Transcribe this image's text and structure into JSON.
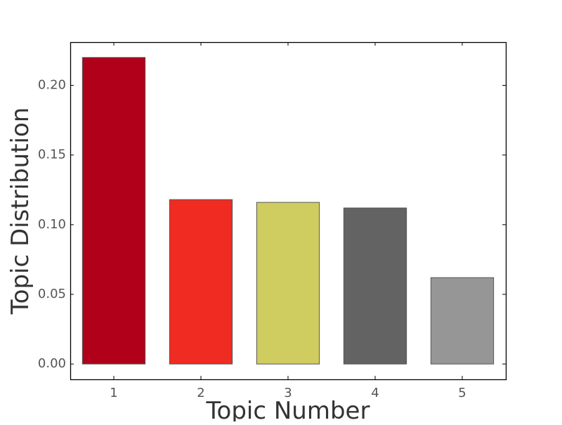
{
  "chart_data": {
    "type": "bar",
    "title": "",
    "xlabel": "Topic Number",
    "ylabel": "Topic Distribution",
    "categories": [
      "1",
      "2",
      "3",
      "4",
      "5"
    ],
    "values": [
      0.22,
      0.118,
      0.116,
      0.112,
      0.062
    ],
    "colors": [
      "#b0001a",
      "#f02b22",
      "#cfcc60",
      "#636363",
      "#969696"
    ],
    "bar_edge_color": "#555555",
    "ylim": [
      -0.011,
      0.231
    ],
    "yticks": [
      0.0,
      0.05,
      0.1,
      0.15,
      0.2
    ],
    "ytick_labels": [
      "0.00",
      "0.05",
      "0.10",
      "0.15",
      "0.20"
    ],
    "grid": false,
    "legend": false
  }
}
